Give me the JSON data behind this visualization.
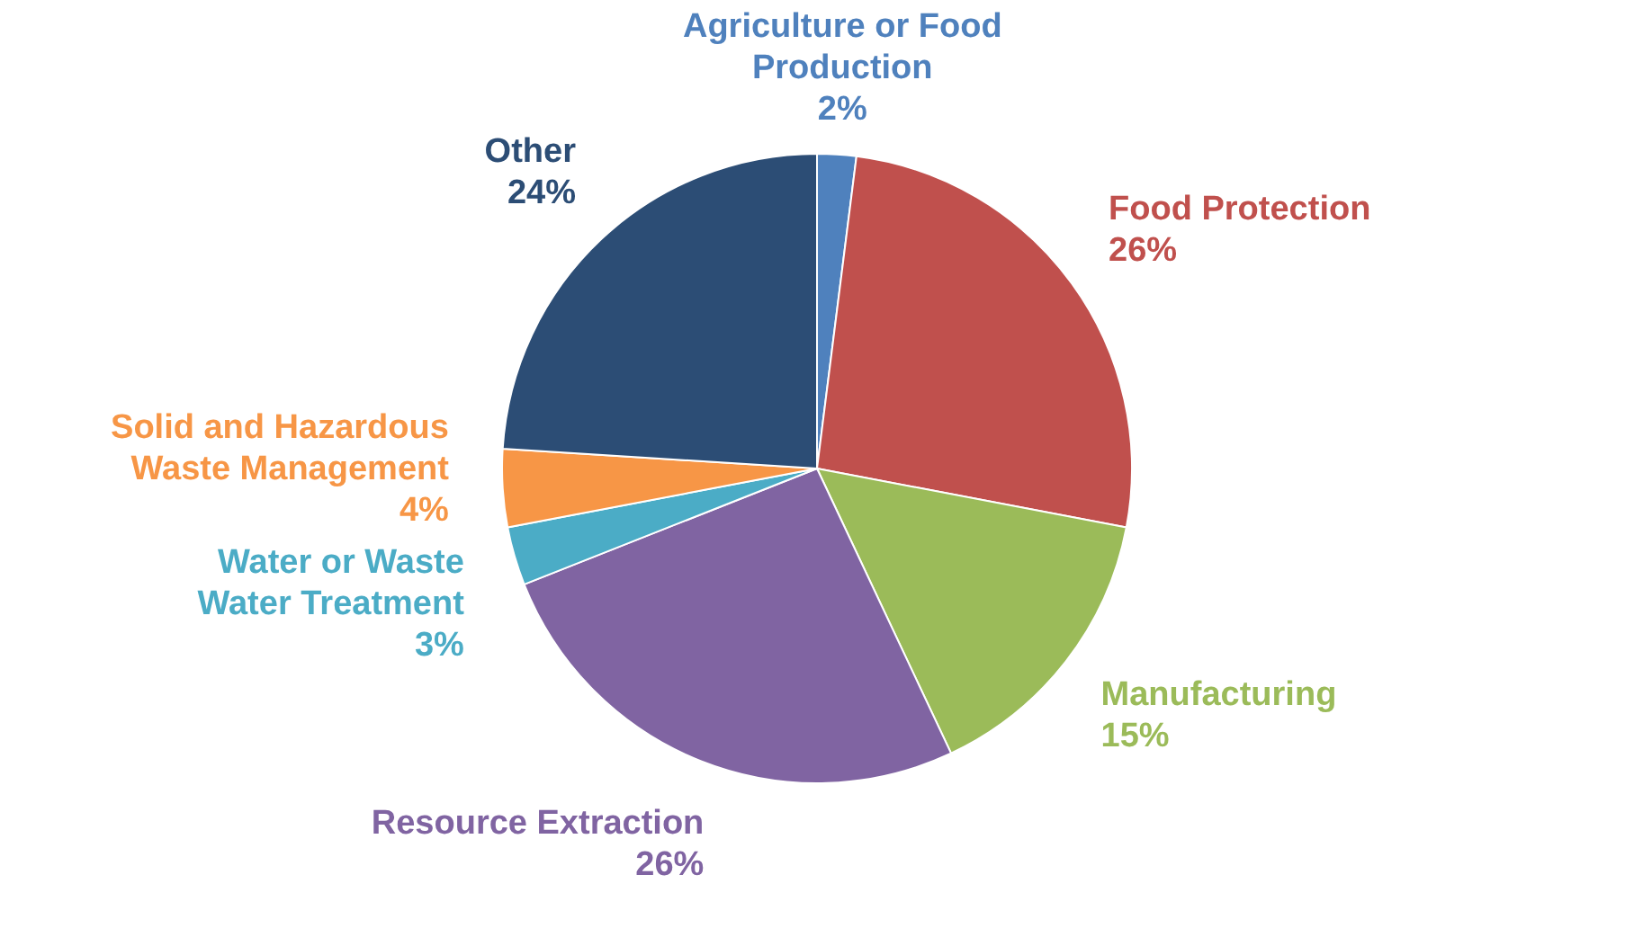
{
  "chart_data": {
    "type": "pie",
    "categories": [
      "Agriculture or Food Production",
      "Food Protection",
      "Manufacturing",
      "Resource Extraction",
      "Water or Waste Water Treatment",
      "Solid and Hazardous Waste Management",
      "Other"
    ],
    "values": [
      2,
      26,
      15,
      26,
      3,
      4,
      24
    ],
    "colors": [
      "#4f81bd",
      "#c0504d",
      "#9bbb59",
      "#8064a2",
      "#4bacc6",
      "#f79646",
      "#2c4d75"
    ],
    "value_labels": [
      "2%",
      "26%",
      "15%",
      "26%",
      "3%",
      "4%",
      "24%"
    ],
    "legend": false
  }
}
